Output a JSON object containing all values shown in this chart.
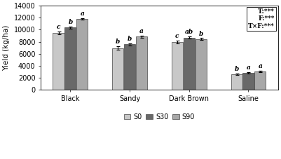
{
  "categories": [
    "Black",
    "Sandy",
    "Dark Brown",
    "Saline"
  ],
  "series": [
    "S0",
    "S30",
    "S90"
  ],
  "values": [
    [
      9500,
      10350,
      11800
    ],
    [
      6950,
      7550,
      8850
    ],
    [
      7950,
      8700,
      8450
    ],
    [
      2550,
      2800,
      3050
    ]
  ],
  "errors": [
    [
      250,
      150,
      120
    ],
    [
      280,
      130,
      200
    ],
    [
      220,
      180,
      150
    ],
    [
      120,
      100,
      90
    ]
  ],
  "letters": [
    [
      "c",
      "b",
      "a"
    ],
    [
      "b",
      "b",
      "a"
    ],
    [
      "c",
      "ab",
      "b"
    ],
    [
      "b",
      "a",
      "a"
    ]
  ],
  "bar_colors": [
    "#c8c8c8",
    "#696969",
    "#a8a8a8"
  ],
  "ylabel": "Yield (kg/ha)",
  "ylim": [
    0,
    14000
  ],
  "yticks": [
    0,
    2000,
    4000,
    6000,
    8000,
    10000,
    12000,
    14000
  ],
  "annotation_text": "T:***\nF:***\nT×F:***",
  "legend_labels": [
    "S0",
    "S30",
    "S90"
  ],
  "bar_width": 0.2,
  "background_color": "#ffffff",
  "legend_colors": [
    "#c8c8c8",
    "#696969",
    "#a8a8a8"
  ]
}
